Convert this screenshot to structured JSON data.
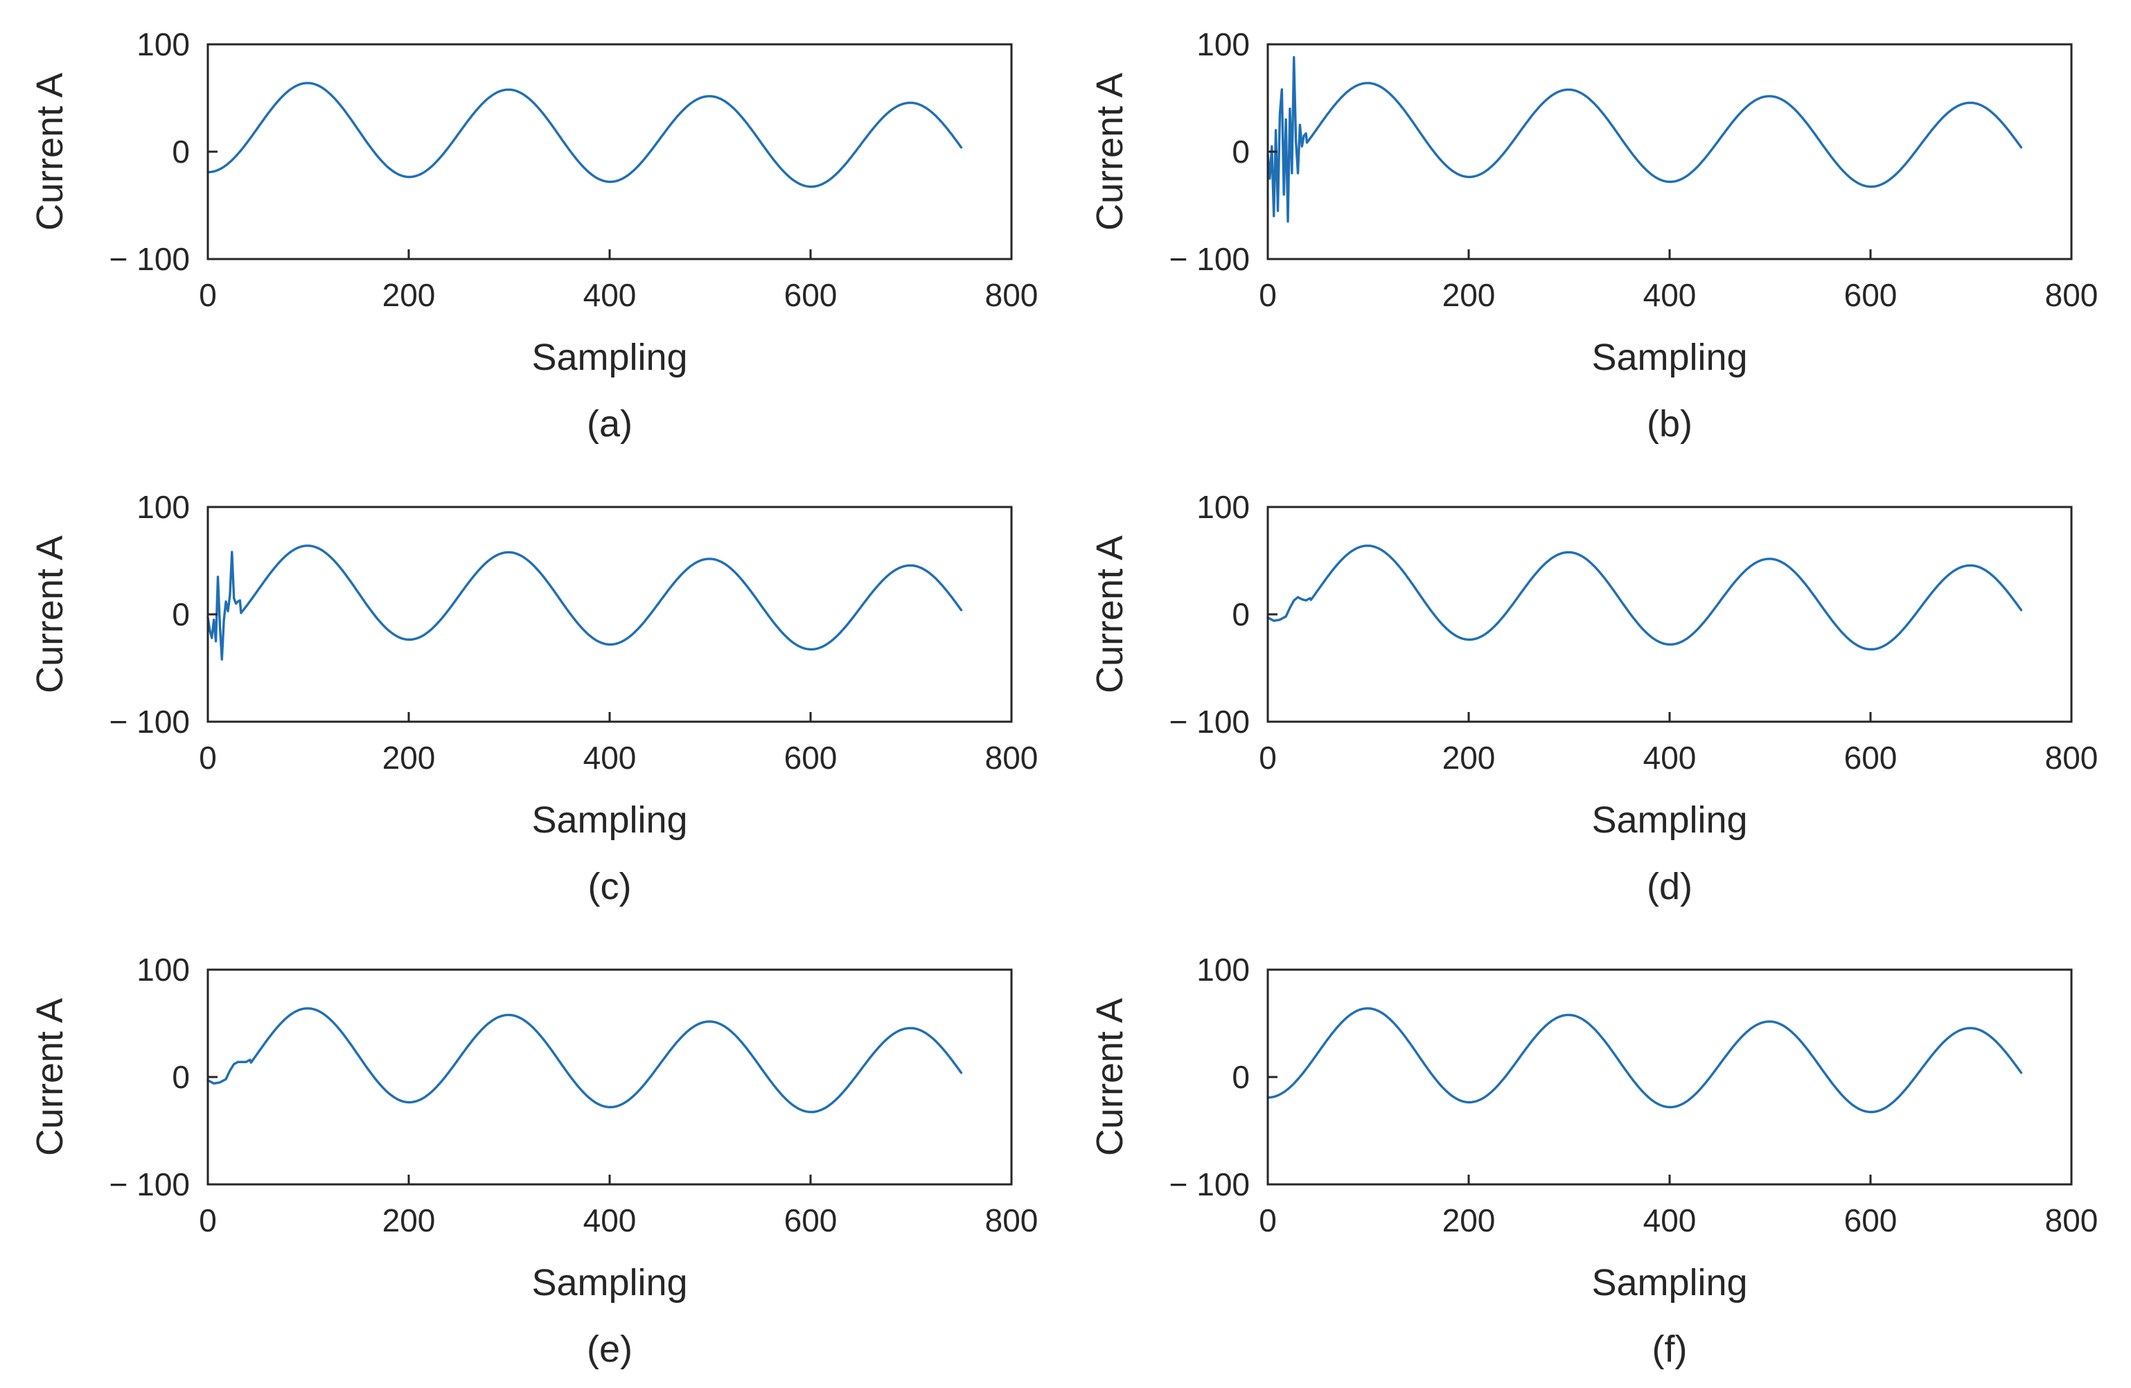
{
  "colors": {
    "series": "#1f6fb5",
    "axis": "#262626"
  },
  "chart_data": [
    {
      "id": "a",
      "type": "line",
      "caption": "(a)",
      "xlabel": "Sampling",
      "ylabel": "Current A",
      "xlim": [
        0,
        800
      ],
      "ylim": [
        -100,
        100
      ],
      "xticks": [
        0,
        200,
        400,
        600,
        800
      ],
      "xtick_labels": [
        "0",
        "200",
        "400",
        "600",
        "800"
      ],
      "yticks": [
        100,
        0,
        -100
      ],
      "ytick_labels": [
        "100",
        "0",
        "− 100"
      ],
      "series": [
        {
          "name": "current",
          "x_range": [
            0,
            750
          ],
          "model": {
            "offset": [
              24,
              4
            ],
            "amplitude": [
              43,
              40
            ],
            "period": 200,
            "trough_at": 0
          },
          "transient": {
            "type": "none",
            "x_end": 0,
            "points": []
          }
        }
      ]
    },
    {
      "id": "b",
      "type": "line",
      "caption": "(b)",
      "xlabel": "Sampling",
      "ylabel": "Current A",
      "xlim": [
        0,
        800
      ],
      "ylim": [
        -100,
        100
      ],
      "xticks": [
        0,
        200,
        400,
        600,
        800
      ],
      "xtick_labels": [
        "0",
        "200",
        "400",
        "600",
        "800"
      ],
      "yticks": [
        100,
        0,
        -100
      ],
      "ytick_labels": [
        "100",
        "0",
        "− 100"
      ],
      "series": [
        {
          "name": "current",
          "x_range": [
            0,
            750
          ],
          "model": {
            "offset": [
              24,
              4
            ],
            "amplitude": [
              43,
              40
            ],
            "period": 200,
            "trough_at": 0
          },
          "transient": {
            "type": "points",
            "x_end": 38,
            "points": [
              [
                0,
                -3
              ],
              [
                2,
                -25
              ],
              [
                4,
                5
              ],
              [
                6,
                -60
              ],
              [
                8,
                20
              ],
              [
                10,
                -55
              ],
              [
                12,
                35
              ],
              [
                14,
                58
              ],
              [
                16,
                -40
              ],
              [
                18,
                30
              ],
              [
                20,
                -65
              ],
              [
                22,
                40
              ],
              [
                24,
                -20
              ],
              [
                26,
                88
              ],
              [
                28,
                10
              ],
              [
                30,
                -20
              ],
              [
                32,
                25
              ],
              [
                34,
                5
              ],
              [
                36,
                15
              ],
              [
                38,
                17
              ]
            ]
          }
        }
      ]
    },
    {
      "id": "c",
      "type": "line",
      "caption": "(c)",
      "xlabel": "Sampling",
      "ylabel": "Current A",
      "xlim": [
        0,
        800
      ],
      "ylim": [
        -100,
        100
      ],
      "xticks": [
        0,
        200,
        400,
        600,
        800
      ],
      "xtick_labels": [
        "0",
        "200",
        "400",
        "600",
        "800"
      ],
      "yticks": [
        100,
        0,
        -100
      ],
      "ytick_labels": [
        "100",
        "0",
        "− 100"
      ],
      "series": [
        {
          "name": "current",
          "x_range": [
            0,
            750
          ],
          "model": {
            "offset": [
              24,
              4
            ],
            "amplitude": [
              43,
              40
            ],
            "period": 200,
            "trough_at": 0
          },
          "transient": {
            "type": "points",
            "x_end": 32,
            "points": [
              [
                0,
                -3
              ],
              [
                2,
                -15
              ],
              [
                4,
                -22
              ],
              [
                6,
                -5
              ],
              [
                8,
                -25
              ],
              [
                10,
                35
              ],
              [
                12,
                -10
              ],
              [
                14,
                -42
              ],
              [
                16,
                -5
              ],
              [
                18,
                12
              ],
              [
                20,
                3
              ],
              [
                22,
                18
              ],
              [
                24,
                58
              ],
              [
                26,
                15
              ],
              [
                28,
                10
              ],
              [
                30,
                12
              ],
              [
                32,
                13
              ]
            ]
          }
        }
      ]
    },
    {
      "id": "d",
      "type": "line",
      "caption": "(d)",
      "xlabel": "Sampling",
      "ylabel": "Current A",
      "xlim": [
        0,
        800
      ],
      "ylim": [
        -100,
        100
      ],
      "xticks": [
        0,
        200,
        400,
        600,
        800
      ],
      "xtick_labels": [
        "0",
        "200",
        "400",
        "600",
        "800"
      ],
      "yticks": [
        100,
        0,
        -100
      ],
      "ytick_labels": [
        "100",
        "0",
        "− 100"
      ],
      "series": [
        {
          "name": "current",
          "x_range": [
            0,
            750
          ],
          "model": {
            "offset": [
              24,
              4
            ],
            "amplitude": [
              43,
              40
            ],
            "period": 200,
            "trough_at": 0
          },
          "transient": {
            "type": "points",
            "x_end": 42,
            "points": [
              [
                0,
                -3
              ],
              [
                6,
                -6
              ],
              [
                12,
                -5
              ],
              [
                18,
                -2
              ],
              [
                22,
                6
              ],
              [
                26,
                13
              ],
              [
                30,
                16
              ],
              [
                34,
                14
              ],
              [
                38,
                13
              ],
              [
                42,
                15
              ]
            ]
          }
        }
      ]
    },
    {
      "id": "e",
      "type": "line",
      "caption": "(e)",
      "xlabel": "Sampling",
      "ylabel": "Current A",
      "xlim": [
        0,
        800
      ],
      "ylim": [
        -100,
        100
      ],
      "xticks": [
        0,
        200,
        400,
        600,
        800
      ],
      "xtick_labels": [
        "0",
        "200",
        "400",
        "600",
        "800"
      ],
      "yticks": [
        100,
        0,
        -100
      ],
      "ytick_labels": [
        "100",
        "0",
        "− 100"
      ],
      "series": [
        {
          "name": "current",
          "x_range": [
            0,
            750
          ],
          "model": {
            "offset": [
              24,
              4
            ],
            "amplitude": [
              43,
              40
            ],
            "period": 200,
            "trough_at": 0
          },
          "transient": {
            "type": "points",
            "x_end": 42,
            "points": [
              [
                0,
                -3
              ],
              [
                6,
                -6
              ],
              [
                12,
                -5
              ],
              [
                18,
                -2
              ],
              [
                22,
                6
              ],
              [
                26,
                12
              ],
              [
                30,
                14
              ],
              [
                34,
                14
              ],
              [
                38,
                14
              ],
              [
                42,
                16
              ]
            ]
          }
        }
      ]
    },
    {
      "id": "f",
      "type": "line",
      "caption": "(f)",
      "xlabel": "Sampling",
      "ylabel": "Current A",
      "xlim": [
        0,
        800
      ],
      "ylim": [
        -100,
        100
      ],
      "xticks": [
        0,
        200,
        400,
        600,
        800
      ],
      "xtick_labels": [
        "0",
        "200",
        "400",
        "600",
        "800"
      ],
      "yticks": [
        100,
        0,
        -100
      ],
      "ytick_labels": [
        "100",
        "0",
        "− 100"
      ],
      "series": [
        {
          "name": "current",
          "x_range": [
            0,
            750
          ],
          "model": {
            "offset": [
              24,
              4
            ],
            "amplitude": [
              43,
              40
            ],
            "period": 200,
            "trough_at": 0
          },
          "transient": {
            "type": "none",
            "x_end": 0,
            "points": []
          }
        }
      ]
    }
  ]
}
